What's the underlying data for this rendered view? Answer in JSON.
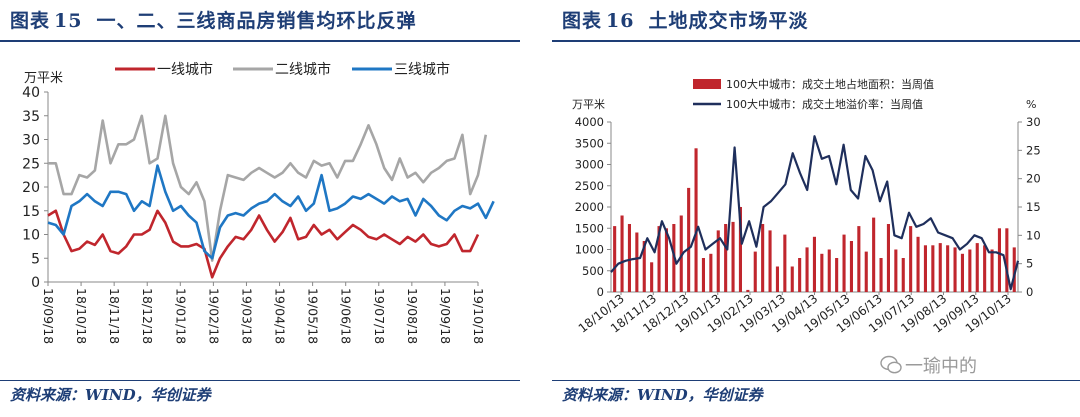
{
  "left": {
    "fig_label": "图表",
    "fig_num": "15",
    "fig_title": "一、二、三线商品房销售均环比反弹",
    "source": "资料来源：WIND，华创证券"
  },
  "right": {
    "fig_label": "图表",
    "fig_num": "16",
    "fig_title": "土地成交市场平淡",
    "source": "资料来源：WIND，华创证券"
  },
  "watermark": "一瑜中的",
  "colors": {
    "accent": "#1e3e76",
    "tier1": "#c0262d",
    "tier2": "#a6a6a6",
    "tier3": "#1f77c4",
    "bar": "#c0262d",
    "premium": "#1f2f5c"
  },
  "chart_data": [
    {
      "type": "line",
      "yunit": "万平米",
      "ylim": [
        0,
        40
      ],
      "yticks": [
        0,
        5,
        10,
        15,
        20,
        25,
        30,
        35,
        40
      ],
      "xtick_labels": [
        "18/09/18",
        "18/10/18",
        "18/11/18",
        "18/12/18",
        "19/01/18",
        "19/02/18",
        "19/03/18",
        "19/04/18",
        "19/05/18",
        "19/06/18",
        "19/07/18",
        "19/08/18",
        "19/09/18",
        "19/10/18"
      ],
      "legend_position": "top",
      "grid": false,
      "series": [
        {
          "name": "一线城市",
          "color": "#c0262d",
          "values": [
            14,
            15,
            10,
            6.5,
            7,
            8.5,
            7.8,
            10,
            6.5,
            6,
            7.5,
            10,
            10,
            11,
            15,
            12.5,
            8.5,
            7.5,
            7.5,
            8,
            7,
            1,
            5,
            7.5,
            9.5,
            9,
            11,
            14,
            11,
            8.5,
            10.5,
            13.5,
            9,
            9.5,
            12,
            10,
            11,
            9,
            10.5,
            12,
            11,
            9.5,
            9,
            10,
            9,
            8,
            9.5,
            8.5,
            10,
            8,
            7.5,
            8,
            10,
            6.5,
            6.5,
            10
          ]
        },
        {
          "name": "二线城市",
          "color": "#a6a6a6",
          "values": [
            25,
            25,
            18.5,
            18.5,
            22.5,
            22,
            23.5,
            34,
            25,
            29,
            29,
            30,
            35,
            25,
            26,
            35,
            25,
            20,
            18.5,
            21,
            17,
            4.5,
            15,
            22.5,
            22,
            21.5,
            23,
            24,
            23,
            22,
            23,
            25,
            23,
            22,
            25.5,
            24.5,
            25,
            22,
            25.5,
            25.5,
            29,
            33,
            29,
            24,
            21.5,
            26,
            22,
            23,
            21,
            23,
            24,
            25.5,
            26,
            31,
            18.5,
            22.5,
            31
          ]
        },
        {
          "name": "三线城市",
          "color": "#1f77c4",
          "values": [
            12.5,
            12,
            10,
            16,
            17,
            18.5,
            17,
            16,
            19,
            19,
            18.5,
            15,
            17,
            16,
            24.5,
            19,
            15,
            16,
            14,
            12.5,
            6.5,
            5,
            11.5,
            14,
            14.5,
            14,
            15.5,
            16.5,
            17,
            18.5,
            17,
            16,
            18,
            15,
            16.5,
            22.5,
            15,
            15.5,
            16.5,
            18,
            17.5,
            18.5,
            17.5,
            16.5,
            18,
            17,
            17.5,
            14,
            17.5,
            16,
            14,
            13,
            15,
            16,
            15.5,
            16.5,
            13.5,
            17
          ]
        }
      ]
    },
    {
      "type": "bar+line",
      "y_left_unit": "万平米",
      "y_right_unit": "%",
      "ylim_left": [
        0,
        4000
      ],
      "yticks_left": [
        0,
        500,
        1000,
        1500,
        2000,
        2500,
        3000,
        3500,
        4000
      ],
      "ylim_right": [
        0,
        30
      ],
      "yticks_right": [
        0,
        5,
        10,
        15,
        20,
        25,
        30
      ],
      "xtick_labels": [
        "18/10/13",
        "18/11/13",
        "18/12/13",
        "19/01/13",
        "19/02/13",
        "19/03/13",
        "19/04/13",
        "19/05/13",
        "19/06/13",
        "19/07/13",
        "19/08/13",
        "19/09/13",
        "19/10/13"
      ],
      "legend_position": "top",
      "grid": false,
      "series": [
        {
          "name": "100大中城市：成交土地占地面积：当周值",
          "type": "bar",
          "axis": "left",
          "color": "#c0262d",
          "values": [
            1550,
            1800,
            1600,
            1400,
            1200,
            700,
            1550,
            1500,
            1600,
            1800,
            2450,
            3380,
            800,
            900,
            1450,
            1600,
            1650,
            2000,
            50,
            950,
            1600,
            1450,
            600,
            1350,
            600,
            800,
            1050,
            1300,
            900,
            1000,
            800,
            1350,
            1200,
            1550,
            950,
            1750,
            800,
            1600,
            1000,
            800,
            1550,
            1300,
            1100,
            1100,
            1150,
            1100,
            1050,
            900,
            1000,
            1150,
            1100,
            1000,
            1500,
            1500,
            1050
          ]
        },
        {
          "name": "100大中城市：成交土地溢价率：当周值",
          "type": "line",
          "axis": "right",
          "color": "#1f2f5c",
          "values": [
            3.5,
            5,
            5.5,
            5.8,
            6,
            9.5,
            7,
            12.5,
            9.5,
            5,
            7,
            8,
            11.5,
            7.5,
            8.5,
            9.5,
            7.5,
            25.5,
            8.5,
            12.5,
            8,
            15,
            16,
            17.5,
            19,
            24.5,
            21,
            18,
            27.5,
            23.5,
            24,
            19,
            26,
            18,
            16.5,
            24,
            21.5,
            16,
            19.5,
            10,
            9.5,
            14,
            11.5,
            12,
            13,
            10.5,
            10,
            9.5,
            7.5,
            8.5,
            10,
            9.5,
            7,
            7,
            6.5,
            0.5,
            5.5
          ]
        }
      ]
    }
  ]
}
